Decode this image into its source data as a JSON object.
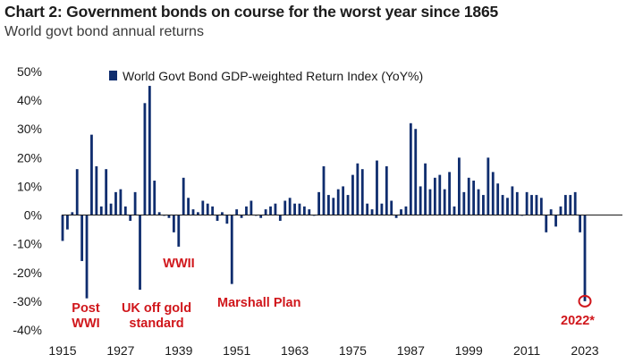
{
  "chart_data": {
    "type": "bar",
    "title": "Chart 2: Government bonds on course for the worst year since 1865",
    "subtitle": "World govt bond annual returns",
    "series": [
      {
        "name": "World Govt Bond GDP-weighted Return Index (YoY%)",
        "color": "#0f2d6e",
        "x_start": 1915,
        "values": [
          -9,
          -5,
          1,
          16,
          -16,
          -29,
          28,
          17,
          3,
          16,
          4,
          8,
          9,
          3,
          -2,
          8,
          -26,
          39,
          45,
          12,
          1,
          0,
          -1,
          -6,
          -11,
          13,
          6,
          2,
          1,
          5,
          4,
          3,
          -2,
          1,
          -3,
          -24,
          2,
          -1,
          3,
          5,
          0,
          -1,
          2,
          3,
          4,
          -2,
          5,
          6,
          4,
          4,
          3,
          2,
          0,
          8,
          17,
          7,
          6,
          9,
          10,
          7,
          14,
          18,
          16,
          4,
          2,
          19,
          4,
          17,
          5,
          -1,
          2,
          3,
          32,
          30,
          10,
          18,
          9,
          13,
          14,
          9,
          15,
          3,
          20,
          8,
          13,
          12,
          9,
          7,
          20,
          15,
          11,
          7,
          6,
          10,
          8,
          0,
          8,
          7,
          7,
          6,
          -6,
          2,
          -4,
          3,
          7,
          7,
          8,
          -6,
          -30
        ]
      }
    ],
    "x_ticks": [
      "1915",
      "1927",
      "1939",
      "1951",
      "1963",
      "1975",
      "1987",
      "1999",
      "2011",
      "2023"
    ],
    "y_ticks": [
      "50%",
      "40%",
      "30%",
      "20%",
      "10%",
      "0%",
      "-10%",
      "-20%",
      "-30%",
      "-40%"
    ],
    "ylim": [
      -40,
      50
    ],
    "xlabel": "",
    "ylabel": "",
    "legend": "top-center",
    "grid": false,
    "annotations": [
      {
        "lines": [
          "Post",
          "WWI"
        ],
        "near_year": 1920
      },
      {
        "lines": [
          "UK off gold",
          "standard"
        ],
        "near_year": 1931
      },
      {
        "lines": [
          "WWII"
        ],
        "near_year": 1942
      },
      {
        "lines": [
          "Marshall Plan"
        ],
        "near_year": 1950
      },
      {
        "lines": [
          "2022*"
        ],
        "near_year": 2022
      }
    ],
    "annotation_color": "#d0161b"
  }
}
